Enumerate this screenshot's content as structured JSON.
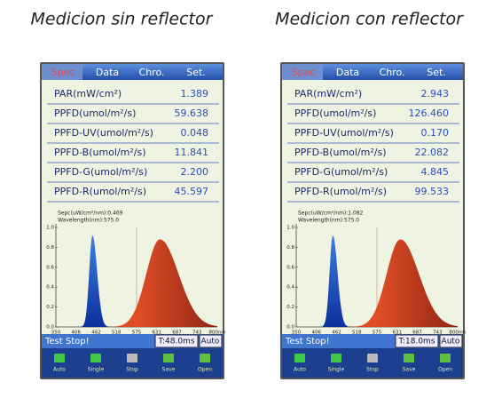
{
  "panels": [
    {
      "caption": "Medicion sin reflector",
      "tabs": [
        "Spec",
        "Data",
        "Chro.",
        "Set."
      ],
      "rows": [
        {
          "label": "PAR(mW/cm²)",
          "value": "1.389"
        },
        {
          "label": "PPFD(umol/m²/s)",
          "value": "59.638"
        },
        {
          "label": "PPFD-UV(umol/m²/s)",
          "value": "0.048"
        },
        {
          "label": "PPFD-B(umol/m²/s)",
          "value": "11.841"
        },
        {
          "label": "PPFD-G(umol/m²/s)",
          "value": "2.200"
        },
        {
          "label": "PPFD-R(umol/m²/s)",
          "value": "45.597"
        }
      ],
      "sepc": "Sepc(uW/cm²/nm):0.469",
      "wavelength": "Wavelength(nm):575.0",
      "yticks": [
        "0.0",
        "0.2",
        "0.4",
        "0.6",
        "0.8",
        "1.0"
      ],
      "xticks": [
        "350",
        "406",
        "462",
        "518",
        "575",
        "631",
        "687",
        "743",
        "800nm"
      ],
      "status": "Test Stop!",
      "time": "T:48.0ms",
      "mode": "Auto",
      "buttons": [
        "Auto",
        "Single",
        "Stop",
        "Save",
        "Open"
      ]
    },
    {
      "caption": "Medicion con reflector",
      "tabs": [
        "Spec",
        "Data",
        "Chro.",
        "Set."
      ],
      "rows": [
        {
          "label": "PAR(mW/cm²)",
          "value": "2.943"
        },
        {
          "label": "PPFD(umol/m²/s)",
          "value": "126.460"
        },
        {
          "label": "PPFD-UV(umol/m²/s)",
          "value": "0.170"
        },
        {
          "label": "PPFD-B(umol/m²/s)",
          "value": "22.082"
        },
        {
          "label": "PPFD-G(umol/m²/s)",
          "value": "4.845"
        },
        {
          "label": "PPFD-R(umol/m²/s)",
          "value": "99.533"
        }
      ],
      "sepc": "Sepc(uW/cm²/nm):1.082",
      "wavelength": "Wavelength(nm):575.0",
      "yticks": [
        "0.0",
        "0.2",
        "0.4",
        "0.6",
        "0.8",
        "1.0"
      ],
      "xticks": [
        "350",
        "406",
        "462",
        "518",
        "575",
        "631",
        "687",
        "743",
        "800nm"
      ],
      "status": "Test Stop!",
      "time": "T:18.0ms",
      "mode": "Auto",
      "buttons": [
        "Auto",
        "Single",
        "Stop",
        "Save",
        "Open"
      ]
    }
  ]
}
